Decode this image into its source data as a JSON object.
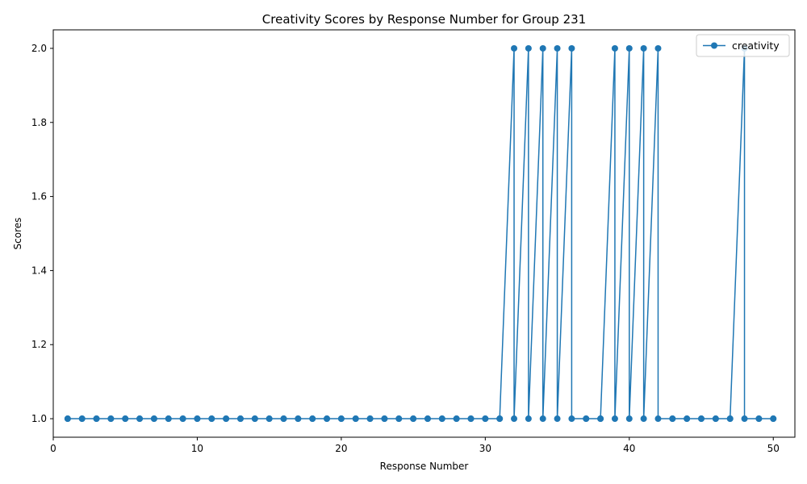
{
  "chart_data": {
    "type": "line",
    "title": "Creativity Scores by Response Number for Group 231",
    "xlabel": "Response Number",
    "ylabel": "Scores",
    "xlim": [
      0,
      51.5
    ],
    "ylim": [
      0.95,
      2.05
    ],
    "xticks": [
      0,
      10,
      20,
      30,
      40,
      50
    ],
    "yticks": [
      1.0,
      1.2,
      1.4,
      1.6,
      1.8,
      2.0
    ],
    "grid": false,
    "legend_position": "top-right",
    "color": "#1f77b4",
    "marker": "circle",
    "series": [
      {
        "name": "creativity",
        "points": [
          [
            1,
            1
          ],
          [
            1,
            1
          ],
          [
            2,
            1
          ],
          [
            2,
            1
          ],
          [
            3,
            1
          ],
          [
            3,
            1
          ],
          [
            4,
            1
          ],
          [
            4,
            1
          ],
          [
            5,
            1
          ],
          [
            5,
            1
          ],
          [
            6,
            1
          ],
          [
            6,
            1
          ],
          [
            7,
            1
          ],
          [
            7,
            1
          ],
          [
            8,
            1
          ],
          [
            8,
            1
          ],
          [
            9,
            1
          ],
          [
            9,
            1
          ],
          [
            10,
            1
          ],
          [
            10,
            1
          ],
          [
            11,
            1
          ],
          [
            11,
            1
          ],
          [
            12,
            1
          ],
          [
            12,
            1
          ],
          [
            13,
            1
          ],
          [
            13,
            1
          ],
          [
            14,
            1
          ],
          [
            14,
            1
          ],
          [
            15,
            1
          ],
          [
            15,
            1
          ],
          [
            16,
            1
          ],
          [
            16,
            1
          ],
          [
            17,
            1
          ],
          [
            17,
            1
          ],
          [
            18,
            1
          ],
          [
            18,
            1
          ],
          [
            19,
            1
          ],
          [
            19,
            1
          ],
          [
            20,
            1
          ],
          [
            20,
            1
          ],
          [
            21,
            1
          ],
          [
            21,
            1
          ],
          [
            22,
            1
          ],
          [
            22,
            1
          ],
          [
            23,
            1
          ],
          [
            23,
            1
          ],
          [
            24,
            1
          ],
          [
            24,
            1
          ],
          [
            25,
            1
          ],
          [
            25,
            1
          ],
          [
            26,
            1
          ],
          [
            26,
            1
          ],
          [
            27,
            1
          ],
          [
            27,
            1
          ],
          [
            28,
            1
          ],
          [
            28,
            1
          ],
          [
            29,
            1
          ],
          [
            29,
            1
          ],
          [
            30,
            1
          ],
          [
            30,
            1
          ],
          [
            31,
            1
          ],
          [
            31,
            1
          ],
          [
            32,
            2
          ],
          [
            32,
            1
          ],
          [
            33,
            2
          ],
          [
            33,
            1
          ],
          [
            34,
            2
          ],
          [
            34,
            1
          ],
          [
            35,
            2
          ],
          [
            35,
            1
          ],
          [
            36,
            2
          ],
          [
            36,
            1
          ],
          [
            37,
            1
          ],
          [
            37,
            1
          ],
          [
            38,
            1
          ],
          [
            38,
            1
          ],
          [
            39,
            2
          ],
          [
            39,
            1
          ],
          [
            40,
            2
          ],
          [
            40,
            1
          ],
          [
            41,
            2
          ],
          [
            41,
            1
          ],
          [
            42,
            2
          ],
          [
            42,
            1
          ],
          [
            43,
            1
          ],
          [
            43,
            1
          ],
          [
            44,
            1
          ],
          [
            44,
            1
          ],
          [
            45,
            1
          ],
          [
            45,
            1
          ],
          [
            46,
            1
          ],
          [
            46,
            1
          ],
          [
            47,
            1
          ],
          [
            47,
            1
          ],
          [
            48,
            2
          ],
          [
            48,
            1
          ],
          [
            49,
            1
          ],
          [
            49,
            1
          ],
          [
            50,
            1
          ],
          [
            50,
            1
          ]
        ]
      }
    ]
  }
}
